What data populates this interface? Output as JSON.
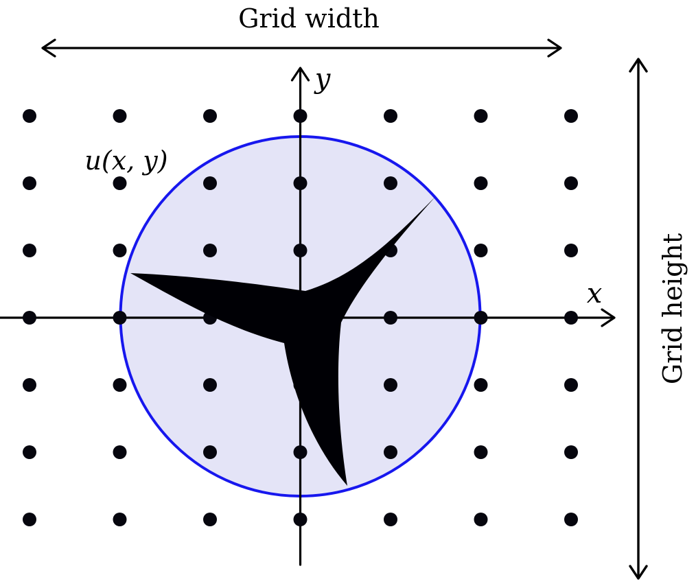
{
  "diagram": {
    "top_dimension_label": "Grid width",
    "right_dimension_label": "Grid height",
    "field_label": "u(x, y)",
    "x_axis_label": "x",
    "y_axis_label": "y"
  },
  "grid": {
    "rows": 7,
    "cols": 7
  },
  "colors": {
    "background": "#ffffff",
    "circle_stroke": "#1717ee",
    "circle_fill": "#e4e4f7",
    "axis": "#000000",
    "dimension_arrow": "#000000",
    "dot": "#06060e",
    "rotor_shape": "#000005",
    "text": "#000000"
  },
  "icons": {
    "rotor": "three-blade-rotor-silhouette",
    "top_arrow": "horizontal-double-arrow",
    "right_arrow": "vertical-double-arrow"
  }
}
